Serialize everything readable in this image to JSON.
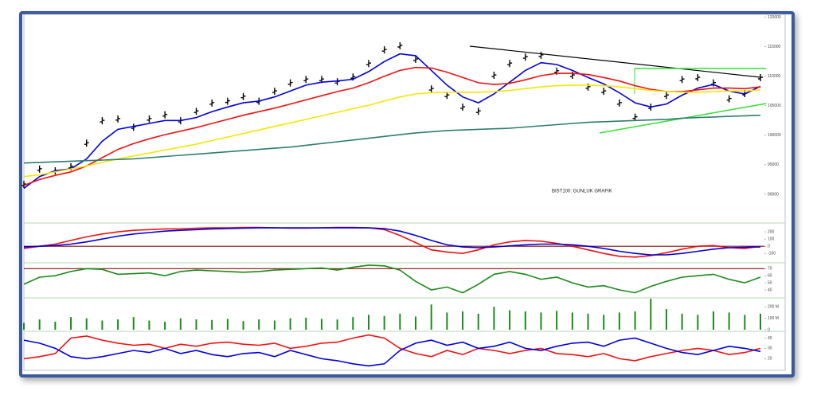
{
  "chart_data": [
    {
      "type": "line",
      "annotation": "BIST100: GUNLUK GRAFIK",
      "categories": [
        null,
        null,
        null,
        null,
        null,
        null,
        null,
        null,
        null,
        null,
        null,
        null,
        null,
        null,
        null,
        null,
        null,
        null,
        null,
        null,
        null,
        null,
        null,
        null,
        null,
        null,
        null,
        null,
        null,
        null,
        null,
        null,
        null,
        null,
        null,
        null,
        null,
        null,
        null,
        null,
        null,
        null,
        null,
        null,
        null,
        null,
        null,
        null
      ],
      "ylim": [
        85400,
        120500
      ],
      "yticks": [
        90000,
        95000,
        100000,
        105000,
        110000,
        115000,
        120000
      ],
      "grid": false,
      "series": [
        {
          "color": "#000000",
          "style": "ticks",
          "values": [
            91600,
            94200,
            93900,
            94600,
            98600,
            102400,
            102700,
            101300,
            102700,
            103400,
            102400,
            104000,
            105400,
            105700,
            106500,
            105700,
            107400,
            108800,
            109400,
            109400,
            109000,
            109800,
            112100,
            114400,
            115100,
            112800,
            107800,
            106700,
            104700,
            104000,
            110100,
            112100,
            113200,
            113500,
            110800,
            110100,
            108100,
            107400,
            105400,
            103000,
            104700,
            106700,
            109400,
            109700,
            108800,
            106100,
            107000,
            109700
          ]
        },
        {
          "color": "#0000dd",
          "style": "line",
          "values": [
            91000,
            93000,
            94000,
            94300,
            96000,
            99000,
            101000,
            101500,
            102000,
            102500,
            102500,
            103000,
            104000,
            104800,
            105500,
            105800,
            106500,
            107500,
            108500,
            109000,
            109200,
            109500,
            110800,
            112500,
            113800,
            113500,
            111000,
            108500,
            106500,
            105500,
            107000,
            109000,
            111000,
            112300,
            112000,
            111000,
            109800,
            108700,
            107200,
            105500,
            104800,
            105300,
            106800,
            108000,
            108600,
            107500,
            107000,
            108300
          ]
        },
        {
          "color": "#ee1111",
          "style": "line",
          "values": [
            91500,
            92500,
            93200,
            93800,
            94800,
            96200,
            97600,
            98600,
            99400,
            100100,
            100700,
            101300,
            102000,
            102700,
            103400,
            104000,
            104600,
            105300,
            106000,
            106700,
            107400,
            108000,
            108900,
            110000,
            111000,
            111500,
            111400,
            110700,
            109800,
            108900,
            108600,
            108800,
            109400,
            110100,
            110500,
            110500,
            110300,
            109800,
            109200,
            108400,
            107800,
            107400,
            107400,
            107700,
            108000,
            108000,
            107900,
            108200
          ]
        },
        {
          "color": "#f5e600",
          "style": "line",
          "values": [
            93000,
            93300,
            93800,
            94300,
            94800,
            95400,
            96000,
            96500,
            97000,
            97500,
            98000,
            98500,
            99100,
            99700,
            100300,
            100900,
            101500,
            102100,
            102700,
            103300,
            103900,
            104500,
            105100,
            105800,
            106500,
            107000,
            107200,
            107300,
            107300,
            107300,
            107400,
            107600,
            107900,
            108200,
            108400,
            108500,
            108500,
            108400,
            108200,
            107900,
            107600,
            107400,
            107300,
            107300,
            107400,
            107500,
            107500,
            107700
          ]
        },
        {
          "color": "#2e7d6e",
          "style": "line",
          "values": [
            95300,
            95400,
            95500,
            95600,
            95700,
            95800,
            95900,
            96000,
            96200,
            96400,
            96600,
            96800,
            97000,
            97200,
            97400,
            97600,
            97800,
            98000,
            98300,
            98600,
            98900,
            99200,
            99500,
            99800,
            100100,
            100400,
            100600,
            100800,
            100900,
            101000,
            101100,
            101200,
            101400,
            101600,
            101800,
            102000,
            102200,
            102300,
            102400,
            102500,
            102600,
            102700,
            102900,
            103000,
            103100,
            103200,
            103300,
            103400
          ]
        }
      ]
    },
    {
      "type": "line",
      "ylim": [
        -230,
        300
      ],
      "yticks": [
        -100,
        0,
        100,
        200
      ],
      "hline": 0,
      "hline_color": "#8b1010",
      "series": [
        {
          "color": "#ee1111",
          "style": "line",
          "values": [
            -30,
            0,
            30,
            80,
            130,
            170,
            200,
            220,
            230,
            240,
            240,
            250,
            255,
            255,
            260,
            260,
            255,
            250,
            250,
            255,
            260,
            260,
            255,
            230,
            150,
            50,
            -50,
            -80,
            -100,
            -50,
            20,
            60,
            80,
            70,
            40,
            0,
            -50,
            -100,
            -140,
            -150,
            -130,
            -90,
            -40,
            0,
            10,
            -20,
            -30,
            0
          ]
        },
        {
          "color": "#0000dd",
          "style": "line",
          "values": [
            -10,
            0,
            10,
            30,
            60,
            100,
            140,
            170,
            190,
            210,
            220,
            230,
            240,
            245,
            250,
            255,
            255,
            255,
            255,
            255,
            255,
            255,
            255,
            245,
            210,
            150,
            80,
            20,
            -10,
            -20,
            -10,
            5,
            20,
            30,
            30,
            20,
            0,
            -30,
            -70,
            -100,
            -120,
            -120,
            -100,
            -70,
            -40,
            -20,
            -15,
            -10
          ]
        }
      ]
    },
    {
      "type": "line",
      "ylim": [
        31,
        76
      ],
      "yticks": [
        40,
        50,
        60,
        70
      ],
      "hline": 70,
      "hline_color": "#8b1010",
      "series": [
        {
          "color": "#1a8a1a",
          "style": "line",
          "values": [
            48,
            58,
            60,
            66,
            70,
            69,
            62,
            63,
            64,
            60,
            66,
            68,
            67,
            66,
            65,
            66,
            68,
            69,
            70,
            71,
            68,
            72,
            75,
            74,
            68,
            52,
            40,
            44,
            36,
            48,
            62,
            66,
            62,
            55,
            58,
            50,
            44,
            46,
            40,
            36,
            45,
            52,
            58,
            60,
            62,
            55,
            50,
            58
          ]
        }
      ]
    },
    {
      "type": "bar",
      "ylim": [
        0,
        264000000
      ],
      "yticks": [
        {
          "value": 0,
          "label": "0"
        },
        {
          "value": 100000000,
          "label": "100 M"
        },
        {
          "value": 200000000,
          "label": "200 M"
        }
      ],
      "series": [
        {
          "color": "#1a8a1a",
          "style": "bars",
          "values": [
            60000000,
            90000000,
            70000000,
            110000000,
            100000000,
            80000000,
            90000000,
            110000000,
            80000000,
            70000000,
            100000000,
            90000000,
            85000000,
            95000000,
            75000000,
            90000000,
            80000000,
            100000000,
            105000000,
            95000000,
            90000000,
            110000000,
            130000000,
            120000000,
            140000000,
            115000000,
            220000000,
            150000000,
            160000000,
            140000000,
            200000000,
            170000000,
            160000000,
            150000000,
            165000000,
            150000000,
            140000000,
            130000000,
            150000000,
            160000000,
            270000000,
            180000000,
            140000000,
            130000000,
            160000000,
            150000000,
            130000000,
            140000000
          ]
        }
      ]
    },
    {
      "type": "line",
      "ylim": [
        11,
        45
      ],
      "yticks": [
        20,
        30,
        40
      ],
      "series": [
        {
          "color": "#ee1111",
          "style": "line",
          "values": [
            20,
            22,
            25,
            40,
            42,
            38,
            35,
            33,
            34,
            30,
            34,
            32,
            35,
            36,
            34,
            33,
            35,
            30,
            32,
            35,
            36,
            40,
            43,
            40,
            30,
            25,
            22,
            28,
            24,
            30,
            28,
            25,
            28,
            30,
            25,
            24,
            22,
            25,
            20,
            18,
            22,
            25,
            28,
            30,
            28,
            24,
            26,
            30
          ]
        },
        {
          "color": "#0000dd",
          "style": "line",
          "values": [
            38,
            35,
            30,
            22,
            20,
            22,
            25,
            28,
            26,
            30,
            25,
            28,
            24,
            22,
            25,
            26,
            22,
            28,
            24,
            20,
            18,
            15,
            13,
            15,
            28,
            35,
            38,
            33,
            36,
            30,
            32,
            36,
            30,
            28,
            32,
            35,
            36,
            32,
            38,
            40,
            35,
            30,
            26,
            24,
            28,
            32,
            30,
            27
          ]
        }
      ]
    }
  ]
}
